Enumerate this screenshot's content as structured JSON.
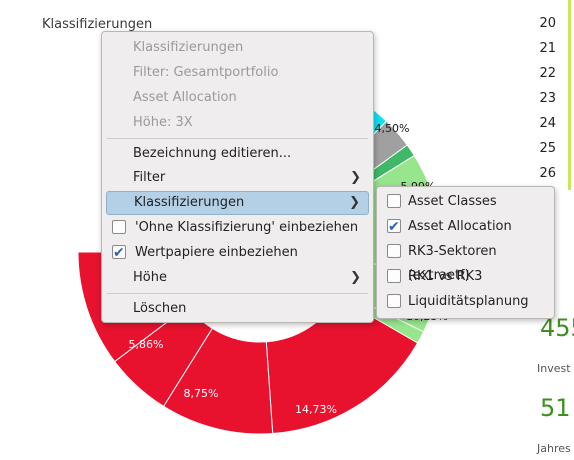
{
  "chart": {
    "title": "Klassifizierungen",
    "visible_labels": [
      "4,50%",
      "5,86%",
      "8,75%",
      "14,73%",
      "10,23%",
      "5,99%"
    ],
    "colors": {
      "red": "#e8122e",
      "cyan": "#12dff2",
      "gray": "#a0a0a0",
      "green": "#3fb867",
      "light_green": "#97e58c"
    }
  },
  "rows": [
    "20",
    "21",
    "22",
    "23",
    "24",
    "25",
    "26"
  ],
  "right_panel": {
    "value1": "455",
    "label1": "Invest",
    "value2": "51",
    "label2": "Jahres"
  },
  "menu": {
    "items": [
      {
        "label": "Klassifizierungen"
      },
      {
        "label": "Filter: Gesamtportfolio"
      },
      {
        "label": "Asset Allocation"
      },
      {
        "label": "Höhe: 3X"
      },
      {
        "label": "Bezeichnung editieren..."
      },
      {
        "label": "Filter"
      },
      {
        "label": "Klassifizierungen"
      },
      {
        "label": "'Ohne Klassifizierung' einbeziehen"
      },
      {
        "label": "Wertpapiere einbeziehen"
      },
      {
        "label": "Höhe"
      },
      {
        "label": "Löschen"
      }
    ]
  },
  "submenu": {
    "items": [
      {
        "label": "Asset Classes"
      },
      {
        "label": "Asset Allocation"
      },
      {
        "label": "RK3-Sektoren (extraetf)"
      },
      {
        "label": "RK1 vs RK3"
      },
      {
        "label": "Liquiditätsplanung"
      }
    ]
  }
}
